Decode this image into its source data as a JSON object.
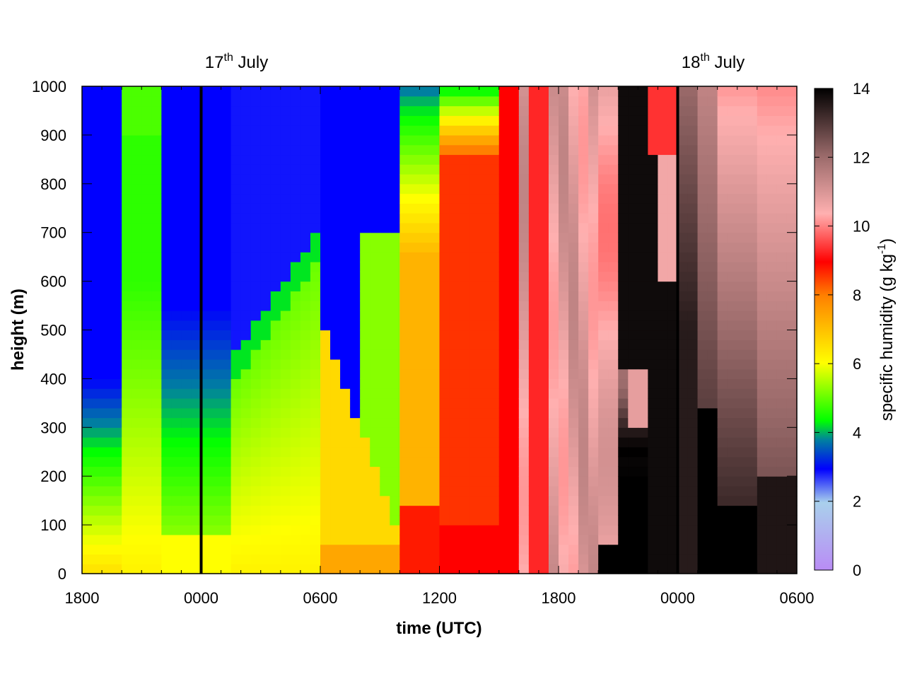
{
  "chart_data": {
    "type": "heatmap",
    "title": "",
    "xlabel": "time (UTC)",
    "ylabel": "height (m)",
    "x_tick_labels": [
      "1800",
      "0000",
      "0600",
      "1200",
      "1800",
      "0000",
      "0600"
    ],
    "y_ticks": [
      0,
      100,
      200,
      300,
      400,
      500,
      600,
      700,
      800,
      900,
      1000
    ],
    "ylim": [
      0,
      1000
    ],
    "xlim_hours_from_start": [
      0,
      36
    ],
    "colorbar": {
      "label_main": "specific humidity (g kg",
      "label_sup": "-1",
      "label_end": ")",
      "range": [
        0,
        14
      ],
      "ticks": [
        0,
        2,
        4,
        6,
        8,
        10,
        12,
        14
      ]
    },
    "annotations": [
      {
        "base": "17",
        "sup": "th",
        "rest": " July",
        "x_hours_from_start": 6
      },
      {
        "base": "18",
        "sup": "th",
        "rest": " July",
        "x_hours_from_start": 30
      }
    ],
    "day_boundaries_hours_from_start": [
      6,
      30
    ],
    "grid": false,
    "legend": "colorbar-right"
  }
}
